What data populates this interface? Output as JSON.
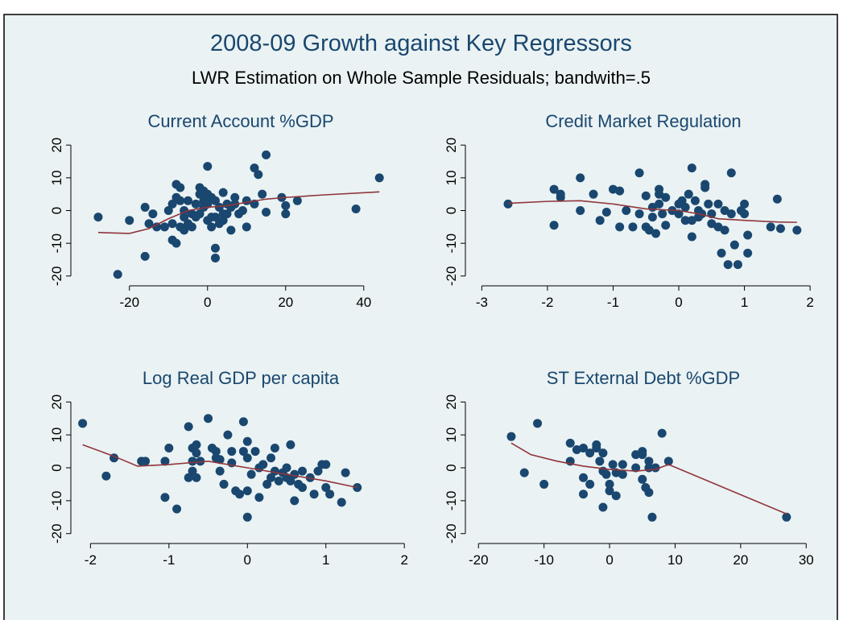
{
  "header": {
    "title": "2008-09 Growth against Key Regressors",
    "subtitle": "LWR Estimation on Whole Sample Residuals; bandwith=.5"
  },
  "chart_data": [
    {
      "type": "scatter",
      "title": "Current Account %GDP",
      "point_color": "#1a476f",
      "line_color": "#90353b",
      "xlim": [
        -35,
        52
      ],
      "ylim": [
        -23,
        23
      ],
      "xticks": [
        -20,
        0,
        20,
        40
      ],
      "yticks": [
        -20,
        -10,
        0,
        10,
        20
      ],
      "points": {
        "x": [
          -28,
          -23,
          -20,
          -16,
          -16,
          -15,
          -14,
          -13,
          -11,
          -10,
          -9,
          -9,
          -9,
          -8,
          -8,
          -8,
          -7,
          -7,
          -7,
          -6,
          -6,
          -6,
          -5,
          -5,
          -4,
          -4,
          -3,
          -3,
          -2,
          -2,
          -2,
          -1,
          -1,
          -1,
          0,
          0,
          0,
          0,
          1,
          1,
          1,
          2,
          2,
          2,
          2,
          3,
          3,
          4,
          4,
          4,
          5,
          5,
          6,
          6,
          7,
          7,
          8,
          9,
          10,
          10,
          12,
          12,
          13,
          14,
          15,
          15,
          19,
          20,
          20,
          23,
          38,
          44
        ],
        "y": [
          -2,
          -19.5,
          -3,
          1,
          -14,
          -4,
          -1,
          -5,
          -5,
          0,
          -9,
          2,
          -4,
          -10,
          4,
          8,
          -5,
          7,
          3,
          -6,
          0,
          -2,
          -4,
          3,
          -1,
          -5,
          -2,
          2,
          5,
          7,
          -1,
          3,
          6,
          1,
          13.5,
          -3,
          5,
          2,
          -5,
          -2,
          4,
          -11.5,
          -14.5,
          -2,
          3,
          -4,
          1,
          -3,
          5.5,
          -1,
          -1,
          2,
          -6,
          1,
          2,
          4,
          -1,
          0,
          -5,
          3,
          13,
          2,
          11,
          5,
          -0.5,
          17,
          4,
          -1,
          1.5,
          3,
          0.5,
          10
        ]
      },
      "fit": {
        "x": [
          -28,
          -20,
          -15,
          -10,
          -5,
          0,
          5,
          10,
          15,
          20,
          30,
          44
        ],
        "y": [
          -6.7,
          -7,
          -5.5,
          -2.5,
          0,
          1,
          1.5,
          2.5,
          3.5,
          4,
          4.8,
          5.7
        ]
      }
    },
    {
      "type": "scatter",
      "title": "Credit Market Regulation",
      "point_color": "#1a476f",
      "line_color": "#90353b",
      "xlim": [
        -3.25,
        2.17
      ],
      "ylim": [
        -23,
        23
      ],
      "xticks": [
        -3,
        -2,
        -1,
        0,
        1,
        2
      ],
      "yticks": [
        -20,
        -10,
        0,
        10,
        20
      ],
      "points": {
        "x": [
          -2.6,
          -1.9,
          -1.9,
          -1.8,
          -1.8,
          -1.5,
          -1.5,
          -1.3,
          -1.2,
          -1.1,
          -1.0,
          -0.9,
          -0.9,
          -0.8,
          -0.7,
          -0.6,
          -0.6,
          -0.5,
          -0.5,
          -0.45,
          -0.4,
          -0.4,
          -0.35,
          -0.3,
          -0.3,
          -0.3,
          -0.25,
          -0.2,
          -0.2,
          -0.1,
          0,
          0,
          0.05,
          0.1,
          0.1,
          0.15,
          0.2,
          0.2,
          0.2,
          0.25,
          0.3,
          0.3,
          0.35,
          0.4,
          0.4,
          0.45,
          0.5,
          0.5,
          0.6,
          0.6,
          0.65,
          0.7,
          0.7,
          0.75,
          0.8,
          0.8,
          0.85,
          0.9,
          0.95,
          1.0,
          1.0,
          1.05,
          1.05,
          1.4,
          1.5,
          1.55,
          1.8
        ],
        "y": [
          2,
          6.5,
          -4.5,
          5,
          4,
          10,
          0,
          5,
          -3,
          -0.5,
          6.5,
          6,
          -5,
          0,
          -5,
          11.5,
          -1,
          4.5,
          -5,
          -6,
          1,
          -2,
          -7,
          6.5,
          5,
          2,
          -1,
          -4.5,
          4,
          0,
          -1,
          2,
          3,
          -3,
          1,
          5,
          13,
          -8,
          -3,
          3,
          0,
          -2,
          -1,
          8,
          7,
          2,
          -4,
          -1,
          2,
          -5,
          -13,
          -6,
          0,
          -16.5,
          11.5,
          -1,
          -10.5,
          -16.5,
          0,
          -1,
          2,
          -13,
          -7.5,
          -5,
          3.5,
          -5.5,
          -6
        ]
      },
      "fit": {
        "x": [
          -2.6,
          -2,
          -1.5,
          -1,
          -0.5,
          0,
          0.3,
          0.6,
          1,
          1.5,
          1.8
        ],
        "y": [
          2.2,
          2.8,
          3,
          2,
          0.5,
          0,
          -1,
          -2.5,
          -3,
          -3.5,
          -3.6
        ]
      }
    },
    {
      "type": "scatter",
      "title": "Log Real GDP per capita",
      "point_color": "#1a476f",
      "line_color": "#90353b",
      "xlim": [
        -2.25,
        2.08
      ],
      "ylim": [
        -23,
        23
      ],
      "xticks": [
        -2,
        -1,
        0,
        1,
        2
      ],
      "yticks": [
        -20,
        -10,
        0,
        10,
        20
      ],
      "points": {
        "x": [
          -2.1,
          -1.8,
          -1.7,
          -1.35,
          -1.3,
          -1.05,
          -1.05,
          -1.0,
          -0.9,
          -0.75,
          -0.75,
          -0.7,
          -0.7,
          -0.7,
          -0.65,
          -0.65,
          -0.65,
          -0.6,
          -0.5,
          -0.45,
          -0.4,
          -0.4,
          -0.35,
          -0.35,
          -0.3,
          -0.25,
          -0.2,
          -0.2,
          -0.15,
          -0.1,
          -0.05,
          -0.05,
          0,
          0,
          0,
          0,
          0.05,
          0.1,
          0.15,
          0.15,
          0.2,
          0.25,
          0.3,
          0.3,
          0.35,
          0.35,
          0.4,
          0.45,
          0.5,
          0.5,
          0.55,
          0.55,
          0.6,
          0.6,
          0.65,
          0.7,
          0.7,
          0.8,
          0.85,
          0.9,
          0.95,
          1.0,
          1.0,
          1.05,
          1.2,
          1.25,
          1.4
        ],
        "y": [
          13.5,
          -2.5,
          3,
          2,
          2,
          2,
          -9,
          6,
          -12.5,
          12.5,
          -3,
          6,
          2,
          -1,
          7,
          4.5,
          -3,
          2,
          15,
          6,
          5,
          3,
          2.5,
          -1,
          -5,
          10,
          5,
          1.5,
          -7,
          -8,
          5,
          14,
          -15,
          8,
          3,
          -7,
          -2,
          5,
          0,
          -9,
          1,
          -5,
          3,
          -3,
          6,
          -1,
          -4,
          -1.5,
          0,
          -3,
          -4,
          7,
          -10,
          -2,
          -5,
          -1,
          -6,
          -3,
          -8,
          -1,
          1,
          1,
          -6,
          -8,
          -10.5,
          -1.5,
          -6
        ]
      },
      "fit": {
        "x": [
          -2.1,
          -1.7,
          -1.4,
          -1,
          -0.5,
          0,
          0.5,
          1,
          1.4
        ],
        "y": [
          7,
          3.5,
          0.5,
          1,
          2,
          0,
          -2,
          -4,
          -6
        ]
      }
    },
    {
      "type": "scatter",
      "title": "ST External Debt %GDP",
      "point_color": "#1a476f",
      "line_color": "#90353b",
      "xlim": [
        -22,
        32.3
      ],
      "ylim": [
        -23,
        23
      ],
      "xticks": [
        -20,
        -10,
        0,
        10,
        20,
        30
      ],
      "yticks": [
        -20,
        -10,
        0,
        10,
        20
      ],
      "points": {
        "x": [
          -15,
          -13,
          -11,
          -10,
          -6,
          -6,
          -5,
          -4,
          -4,
          -4,
          -3,
          -3,
          -2,
          -2,
          -1.5,
          -1,
          -1,
          -1,
          -0.5,
          0,
          0,
          0.5,
          1,
          1,
          2,
          2,
          4,
          4,
          5,
          5,
          5,
          5.5,
          6,
          6,
          6,
          6.5,
          7,
          8,
          9,
          27
        ],
        "y": [
          9.5,
          -1.5,
          13.5,
          -5,
          7.5,
          2,
          5.5,
          -3,
          -8,
          6,
          4.5,
          -5,
          6,
          7,
          2,
          -1,
          -12,
          4.5,
          -2,
          -5,
          -7,
          1,
          -8.5,
          -1.5,
          1,
          -2,
          4,
          0,
          -3.5,
          5,
          4,
          -6,
          0,
          -7.5,
          2,
          -15,
          0,
          10.5,
          2,
          -15
        ]
      },
      "fit": {
        "x": [
          -15,
          -12,
          -8,
          -4,
          0,
          4,
          7,
          9,
          27
        ],
        "y": [
          7.5,
          4,
          2,
          0.5,
          -0.5,
          -1,
          -0.5,
          1,
          -14
        ]
      }
    }
  ]
}
